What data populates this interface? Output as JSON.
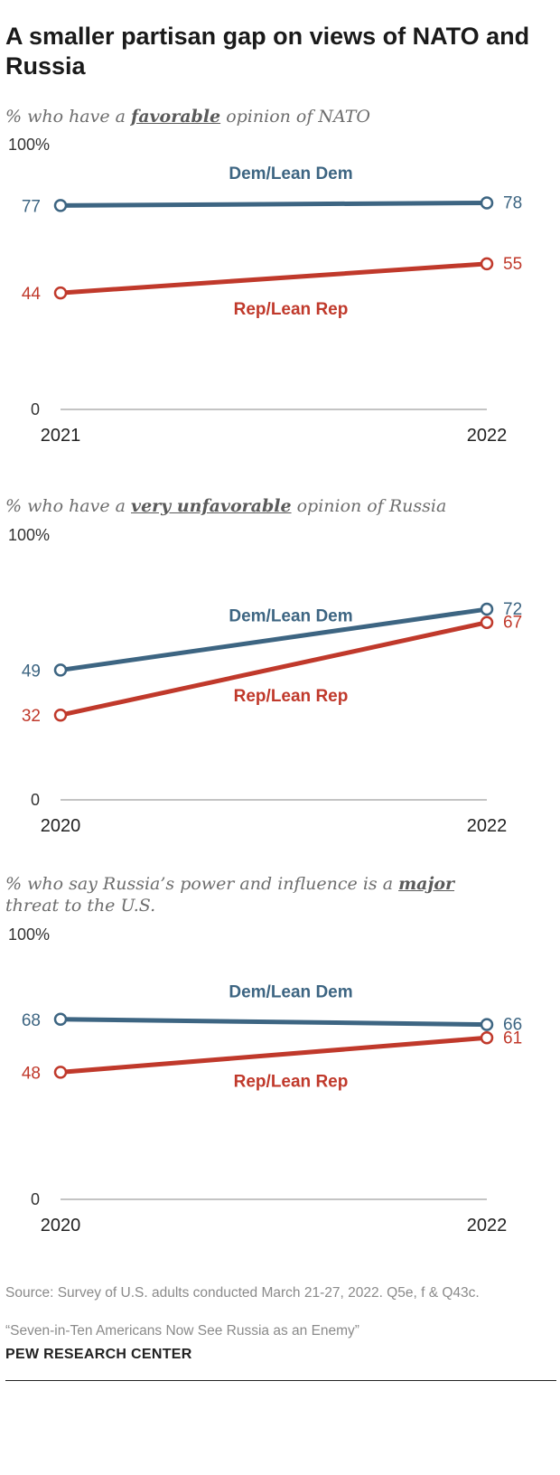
{
  "title": "A smaller partisan gap on views of NATO and Russia",
  "colors": {
    "dem": "#3d6582",
    "rep": "#c0392b",
    "axis": "#888888",
    "text": "#222222"
  },
  "chart_data": [
    {
      "type": "line",
      "subtitle_pre": "% who have a ",
      "subtitle_em": "favorable",
      "subtitle_post": " opinion of NATO",
      "ylim": [
        0,
        100
      ],
      "y_top_label": "100%",
      "y_bottom_label": "0",
      "categories": [
        "2021",
        "2022"
      ],
      "series": [
        {
          "name": "Dem/Lean Dem",
          "key": "dem",
          "values": [
            77,
            78
          ]
        },
        {
          "name": "Rep/Lean Rep",
          "key": "rep",
          "values": [
            44,
            55
          ]
        }
      ]
    },
    {
      "type": "line",
      "subtitle_pre": "% who have a ",
      "subtitle_em": "very unfavorable",
      "subtitle_post": " opinion of Russia",
      "ylim": [
        0,
        100
      ],
      "y_top_label": "100%",
      "y_bottom_label": "0",
      "categories": [
        "2020",
        "2022"
      ],
      "series": [
        {
          "name": "Dem/Lean Dem",
          "key": "dem",
          "values": [
            49,
            72
          ]
        },
        {
          "name": "Rep/Lean Rep",
          "key": "rep",
          "values": [
            32,
            67
          ]
        }
      ]
    },
    {
      "type": "line",
      "subtitle_pre": "% who say Russia’s power and influence is a ",
      "subtitle_em": "major",
      "subtitle_post": " threat to the U.S.",
      "ylim": [
        0,
        100
      ],
      "y_top_label": "100%",
      "y_bottom_label": "0",
      "categories": [
        "2020",
        "2022"
      ],
      "series": [
        {
          "name": "Dem/Lean Dem",
          "key": "dem",
          "values": [
            68,
            66
          ]
        },
        {
          "name": "Rep/Lean Rep",
          "key": "rep",
          "values": [
            48,
            61
          ]
        }
      ]
    }
  ],
  "footer": {
    "source": "Source: Survey of U.S. adults conducted March 21-27, 2022. Q5e, f & Q43c.",
    "report": "“Seven-in-Ten Americans Now See Russia as an Enemy”",
    "brand": "PEW RESEARCH CENTER"
  }
}
